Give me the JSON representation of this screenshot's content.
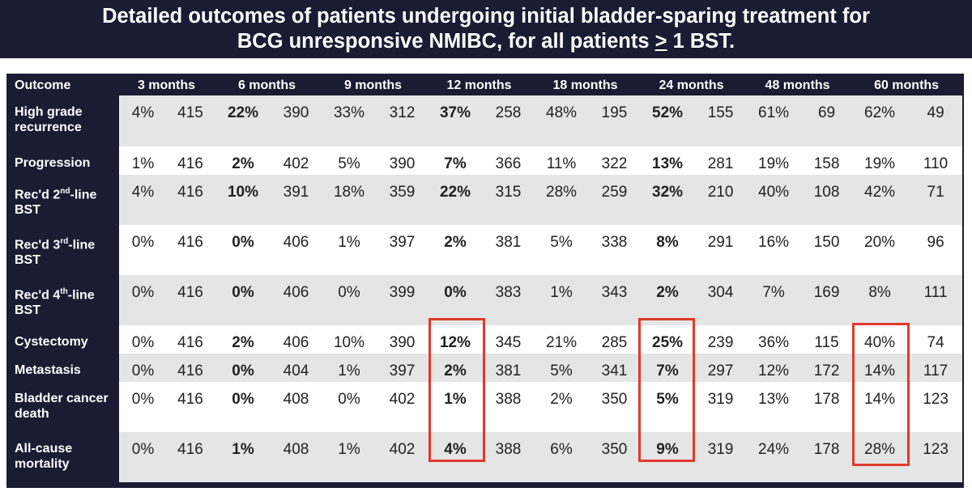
{
  "title": {
    "line1": "Detailed outcomes of patients undergoing initial bladder-sparing treatment for",
    "line2_part1": "BCG unresponsive NMIBC, for all patients ",
    "line2_underlined": ">",
    "line2_part2": " 1 BST."
  },
  "table": {
    "outcome_header": "Outcome",
    "timepoints": [
      "3 months",
      "6 months",
      "9 months",
      "12 months",
      "18 months",
      "24 months",
      "48 months",
      "60 months"
    ],
    "rows": [
      {
        "label": "High grade recurrence",
        "cells": [
          "4%",
          "415",
          "22%",
          "390",
          "33%",
          "312",
          "37%",
          "258",
          "48%",
          "195",
          "52%",
          "155",
          "61%",
          "69",
          "62%",
          "49"
        ]
      },
      {
        "label": "Progression",
        "cells": [
          "1%",
          "416",
          "2%",
          "402",
          "5%",
          "390",
          "7%",
          "366",
          "11%",
          "322",
          "13%",
          "281",
          "19%",
          "158",
          "19%",
          "110"
        ]
      },
      {
        "label_pre": "Rec'd 2",
        "label_sup": "nd",
        "label_post": "-line BST",
        "cells": [
          "4%",
          "416",
          "10%",
          "391",
          "18%",
          "359",
          "22%",
          "315",
          "28%",
          "259",
          "32%",
          "210",
          "40%",
          "108",
          "42%",
          "71"
        ]
      },
      {
        "label_pre": "Rec'd 3",
        "label_sup": "rd",
        "label_post": "-line BST",
        "cells": [
          "0%",
          "416",
          "0%",
          "406",
          "1%",
          "397",
          "2%",
          "381",
          "5%",
          "338",
          "8%",
          "291",
          "16%",
          "150",
          "20%",
          "96"
        ]
      },
      {
        "label_pre": "Rec'd 4",
        "label_sup": "th",
        "label_post": "-line BST",
        "cells": [
          "0%",
          "416",
          "0%",
          "406",
          "0%",
          "399",
          "0%",
          "383",
          "1%",
          "343",
          "2%",
          "304",
          "7%",
          "169",
          "8%",
          "111"
        ]
      },
      {
        "label": "Cystectomy",
        "cells": [
          "0%",
          "416",
          "2%",
          "406",
          "10%",
          "390",
          "12%",
          "345",
          "21%",
          "285",
          "25%",
          "239",
          "36%",
          "115",
          "40%",
          "74"
        ]
      },
      {
        "label": "Metastasis",
        "cells": [
          "0%",
          "416",
          "0%",
          "404",
          "1%",
          "397",
          "2%",
          "381",
          "5%",
          "341",
          "7%",
          "297",
          "12%",
          "172",
          "14%",
          "117"
        ]
      },
      {
        "label": "Bladder cancer death",
        "cells": [
          "0%",
          "416",
          "0%",
          "408",
          "0%",
          "402",
          "1%",
          "388",
          "2%",
          "350",
          "5%",
          "319",
          "13%",
          "178",
          "14%",
          "123"
        ]
      },
      {
        "label": "All-cause mortality",
        "cells": [
          "0%",
          "416",
          "1%",
          "408",
          "1%",
          "402",
          "4%",
          "388",
          "6%",
          "350",
          "9%",
          "319",
          "24%",
          "178",
          "28%",
          "123"
        ]
      }
    ]
  },
  "colors": {
    "navy": "#1b1b33",
    "highlight_box": "#e0392b",
    "gray_row": "#e5e5e5"
  }
}
